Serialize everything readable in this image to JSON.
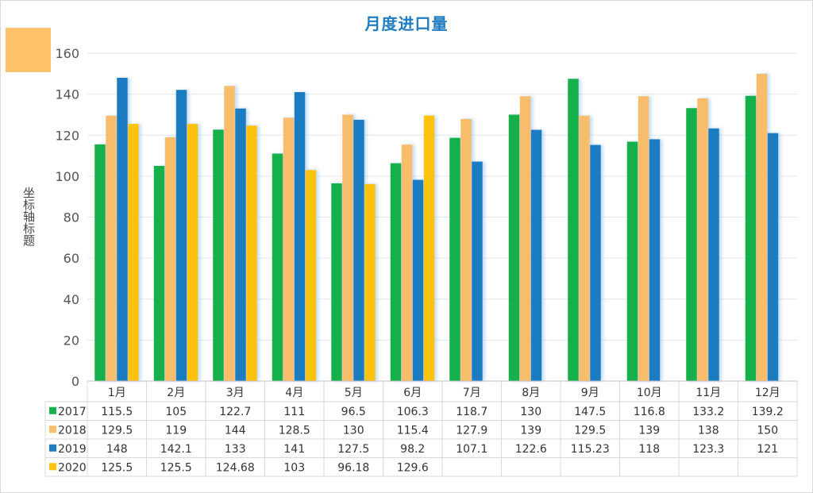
{
  "chart_data": {
    "type": "bar",
    "title": "月度进口量",
    "ylabel": "坐标轴标题",
    "xlabel": "",
    "ylim": [
      0,
      160
    ],
    "yticks": [
      "0",
      "20",
      "40",
      "60",
      "80",
      "100",
      "120",
      "140",
      "160"
    ],
    "grid": true,
    "legend": "data-table-left",
    "categories": [
      "1月",
      "2月",
      "3月",
      "4月",
      "5月",
      "6月",
      "7月",
      "8月",
      "9月",
      "10月",
      "11月",
      "12月"
    ],
    "series": [
      {
        "name": "2017",
        "color": "#16b04b",
        "values": [
          115.5,
          105,
          122.7,
          111,
          96.5,
          106.3,
          118.7,
          130,
          147.5,
          116.8,
          133.2,
          139.2
        ],
        "labels": [
          "115.5",
          "105",
          "122.7",
          "111",
          "96.5",
          "106.3",
          "118.7",
          "130",
          "147.5",
          "116.8",
          "133.2",
          "139.2"
        ]
      },
      {
        "name": "2018",
        "color": "#f7bd6a",
        "values": [
          129.5,
          119,
          144,
          128.5,
          130,
          115.4,
          127.9,
          139,
          129.5,
          139,
          138,
          150
        ],
        "labels": [
          "129.5",
          "119",
          "144",
          "128.5",
          "130",
          "115.4",
          "127.9",
          "139",
          "129.5",
          "139",
          "138",
          "150"
        ]
      },
      {
        "name": "2019",
        "color": "#1f7cc1",
        "values": [
          148,
          142.1,
          133,
          141,
          127.5,
          98.2,
          107.1,
          122.6,
          115.23,
          118,
          123.3,
          121
        ],
        "labels": [
          "148",
          "142.1",
          "133",
          "141",
          "127.5",
          "98.2",
          "107.1",
          "122.6",
          "115.23",
          "118",
          "123.3",
          "121"
        ]
      },
      {
        "name": "2020",
        "color": "#fcc20f",
        "values": [
          125.5,
          125.5,
          124.68,
          103,
          96.18,
          129.6,
          null,
          null,
          null,
          null,
          null,
          null
        ],
        "labels": [
          "125.5",
          "125.5",
          "124.68",
          "103",
          "96.18",
          "129.6",
          "",
          "",
          "",
          "",
          "",
          ""
        ]
      }
    ]
  }
}
